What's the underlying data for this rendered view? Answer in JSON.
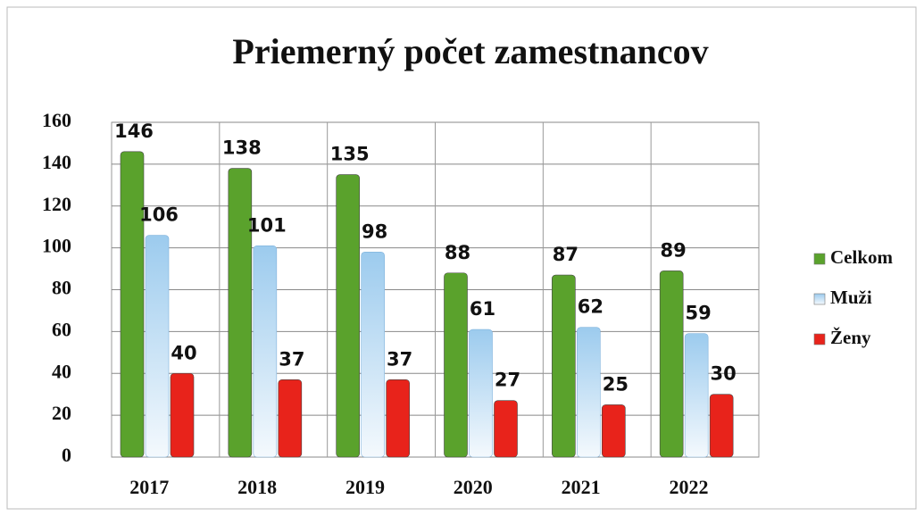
{
  "chart_data": {
    "type": "bar",
    "title": "Priemerný počet zamestnancov",
    "categories": [
      "2017",
      "2018",
      "2019",
      "2020",
      "2021",
      "2022"
    ],
    "series": [
      {
        "name": "Celkom",
        "color": "#5aa22c",
        "values": [
          146,
          138,
          135,
          88,
          87,
          89
        ]
      },
      {
        "name": "Muži",
        "color": "#bcd8ef",
        "values": [
          106,
          101,
          98,
          61,
          62,
          59
        ]
      },
      {
        "name": "Ženy",
        "color": "#e8231b",
        "values": [
          40,
          37,
          37,
          27,
          25,
          30
        ]
      }
    ],
    "ylim": [
      0,
      160
    ],
    "yticks": [
      0,
      20,
      40,
      60,
      80,
      100,
      120,
      140,
      160
    ],
    "grid": true,
    "legend": "right"
  }
}
